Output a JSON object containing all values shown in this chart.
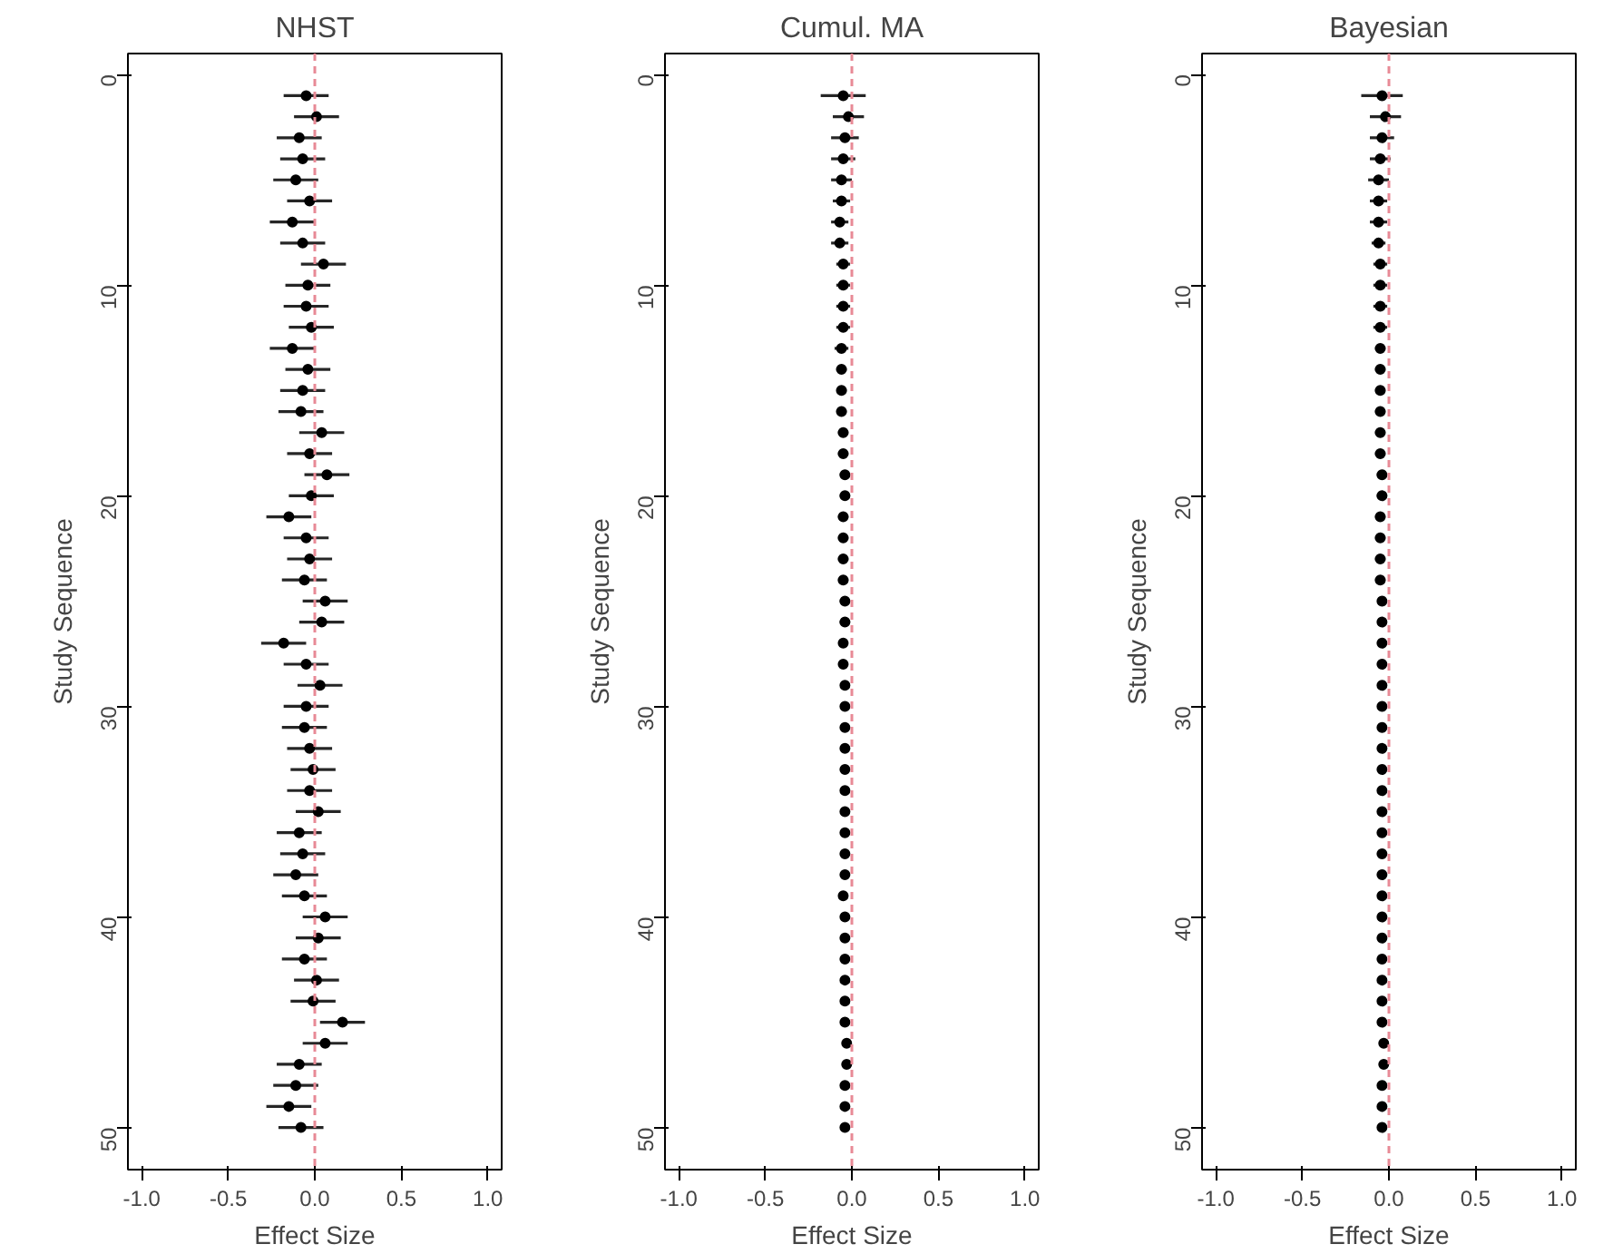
{
  "chart_data": [
    {
      "type": "scatter",
      "title": "NHST",
      "xlabel": "Effect Size",
      "ylabel": "Study Sequence",
      "marker": "circle",
      "grid": false,
      "xlim": [
        -1.08,
        1.08
      ],
      "ylim": [
        52,
        -1
      ],
      "xticks": [
        {
          "value": -1,
          "label": "-1.0"
        },
        {
          "value": -0.5,
          "label": "-0.5"
        },
        {
          "value": 0,
          "label": "0.0"
        },
        {
          "value": 0.5,
          "label": "0.5"
        },
        {
          "value": 1,
          "label": "1.0"
        }
      ],
      "yticks": [
        0,
        10,
        20,
        30,
        40,
        50
      ],
      "ref_lines": [
        {
          "axis": "x",
          "value": 0,
          "label": null,
          "color": "#e88a96",
          "line_style": "dashed"
        }
      ],
      "series": [
        {
          "color": "#000000",
          "x": [
            -0.05,
            0.01,
            -0.09,
            -0.07,
            -0.11,
            -0.03,
            -0.13,
            -0.07,
            0.05,
            -0.04,
            -0.05,
            -0.02,
            -0.13,
            -0.04,
            -0.07,
            -0.08,
            0.04,
            -0.03,
            0.07,
            -0.02,
            -0.15,
            -0.05,
            -0.03,
            -0.06,
            0.06,
            0.04,
            -0.18,
            -0.05,
            0.03,
            -0.05,
            -0.06,
            -0.03,
            -0.01,
            -0.03,
            0.02,
            -0.09,
            -0.07,
            -0.11,
            -0.06,
            0.06,
            0.02,
            -0.06,
            0.01,
            -0.01,
            0.16,
            0.06,
            -0.09,
            -0.11,
            -0.15,
            -0.08
          ],
          "values": [
            1,
            2,
            3,
            4,
            5,
            6,
            7,
            8,
            9,
            10,
            11,
            12,
            13,
            14,
            15,
            16,
            17,
            18,
            19,
            20,
            21,
            22,
            23,
            24,
            25,
            26,
            27,
            28,
            29,
            30,
            31,
            32,
            33,
            34,
            35,
            36,
            37,
            38,
            39,
            40,
            41,
            42,
            43,
            44,
            45,
            46,
            47,
            48,
            49,
            50
          ],
          "xerrors": [
            0.13,
            0.13,
            0.13,
            0.13,
            0.13,
            0.13,
            0.13,
            0.13,
            0.13,
            0.13,
            0.13,
            0.13,
            0.13,
            0.13,
            0.13,
            0.13,
            0.13,
            0.13,
            0.13,
            0.13,
            0.13,
            0.13,
            0.13,
            0.13,
            0.13,
            0.13,
            0.13,
            0.13,
            0.13,
            0.13,
            0.13,
            0.13,
            0.13,
            0.13,
            0.13,
            0.13,
            0.13,
            0.13,
            0.13,
            0.13,
            0.13,
            0.13,
            0.13,
            0.13,
            0.13,
            0.13,
            0.13,
            0.13,
            0.13,
            0.13
          ]
        }
      ]
    },
    {
      "type": "scatter",
      "title": "Cumul. MA",
      "xlabel": "Effect Size",
      "ylabel": "Study Sequence",
      "marker": "circle",
      "grid": false,
      "xlim": [
        -1.08,
        1.08
      ],
      "ylim": [
        52,
        -1
      ],
      "xticks": [
        {
          "value": -1,
          "label": "-1.0"
        },
        {
          "value": -0.5,
          "label": "-0.5"
        },
        {
          "value": 0,
          "label": "0.0"
        },
        {
          "value": 0.5,
          "label": "0.5"
        },
        {
          "value": 1,
          "label": "1.0"
        }
      ],
      "yticks": [
        0,
        10,
        20,
        30,
        40,
        50
      ],
      "ref_lines": [
        {
          "axis": "x",
          "value": 0,
          "label": null,
          "color": "#e88a96",
          "line_style": "dashed"
        }
      ],
      "series": [
        {
          "color": "#000000",
          "x": [
            -0.05,
            -0.02,
            -0.04,
            -0.05,
            -0.06,
            -0.06,
            -0.07,
            -0.07,
            -0.05,
            -0.05,
            -0.05,
            -0.05,
            -0.06,
            -0.06,
            -0.06,
            -0.06,
            -0.05,
            -0.05,
            -0.04,
            -0.04,
            -0.05,
            -0.05,
            -0.05,
            -0.05,
            -0.04,
            -0.04,
            -0.05,
            -0.05,
            -0.04,
            -0.04,
            -0.04,
            -0.04,
            -0.04,
            -0.04,
            -0.04,
            -0.04,
            -0.04,
            -0.04,
            -0.05,
            -0.04,
            -0.04,
            -0.04,
            -0.04,
            -0.04,
            -0.04,
            -0.03,
            -0.03,
            -0.04,
            -0.04,
            -0.04
          ],
          "values": [
            1,
            2,
            3,
            4,
            5,
            6,
            7,
            8,
            9,
            10,
            11,
            12,
            13,
            14,
            15,
            16,
            17,
            18,
            19,
            20,
            21,
            22,
            23,
            24,
            25,
            26,
            27,
            28,
            29,
            30,
            31,
            32,
            33,
            34,
            35,
            36,
            37,
            38,
            39,
            40,
            41,
            42,
            43,
            44,
            45,
            46,
            47,
            48,
            49,
            50
          ],
          "xerrors": [
            0.13,
            0.09,
            0.08,
            0.07,
            0.06,
            0.05,
            0.05,
            0.05,
            0.04,
            0.04,
            0.04,
            0.04,
            0.04,
            0.03,
            0.03,
            0.03,
            0.03,
            0.03,
            0.03,
            0.03,
            0.03,
            0.03,
            0.03,
            0.03,
            0.03,
            0.03,
            0.02,
            0.02,
            0.02,
            0.02,
            0.02,
            0.02,
            0.02,
            0.02,
            0.02,
            0.02,
            0.02,
            0.02,
            0.02,
            0.02,
            0.02,
            0.02,
            0.02,
            0.02,
            0.02,
            0.02,
            0.02,
            0.02,
            0.02,
            0.02
          ]
        }
      ]
    },
    {
      "type": "scatter",
      "title": "Bayesian",
      "xlabel": "Effect Size",
      "ylabel": "Study Sequence",
      "marker": "circle",
      "grid": false,
      "xlim": [
        -1.08,
        1.08
      ],
      "ylim": [
        52,
        -1
      ],
      "xticks": [
        {
          "value": -1,
          "label": "-1.0"
        },
        {
          "value": -0.5,
          "label": "-0.5"
        },
        {
          "value": 0,
          "label": "0.0"
        },
        {
          "value": 0.5,
          "label": "0.5"
        },
        {
          "value": 1,
          "label": "1.0"
        }
      ],
      "yticks": [
        0,
        10,
        20,
        30,
        40,
        50
      ],
      "ref_lines": [
        {
          "axis": "x",
          "value": 0,
          "label": null,
          "color": "#e88a96",
          "line_style": "dashed"
        }
      ],
      "series": [
        {
          "color": "#000000",
          "x": [
            -0.04,
            -0.02,
            -0.04,
            -0.05,
            -0.06,
            -0.06,
            -0.06,
            -0.06,
            -0.05,
            -0.05,
            -0.05,
            -0.05,
            -0.05,
            -0.05,
            -0.05,
            -0.05,
            -0.05,
            -0.05,
            -0.04,
            -0.04,
            -0.05,
            -0.05,
            -0.05,
            -0.05,
            -0.04,
            -0.04,
            -0.04,
            -0.04,
            -0.04,
            -0.04,
            -0.04,
            -0.04,
            -0.04,
            -0.04,
            -0.04,
            -0.04,
            -0.04,
            -0.04,
            -0.04,
            -0.04,
            -0.04,
            -0.04,
            -0.04,
            -0.04,
            -0.04,
            -0.03,
            -0.03,
            -0.04,
            -0.04,
            -0.04
          ],
          "values": [
            1,
            2,
            3,
            4,
            5,
            6,
            7,
            8,
            9,
            10,
            11,
            12,
            13,
            14,
            15,
            16,
            17,
            18,
            19,
            20,
            21,
            22,
            23,
            24,
            25,
            26,
            27,
            28,
            29,
            30,
            31,
            32,
            33,
            34,
            35,
            36,
            37,
            38,
            39,
            40,
            41,
            42,
            43,
            44,
            45,
            46,
            47,
            48,
            49,
            50
          ],
          "xerrors": [
            0.12,
            0.09,
            0.07,
            0.06,
            0.06,
            0.05,
            0.05,
            0.04,
            0.04,
            0.04,
            0.04,
            0.04,
            0.03,
            0.03,
            0.03,
            0.03,
            0.03,
            0.03,
            0.03,
            0.03,
            0.03,
            0.03,
            0.03,
            0.03,
            0.02,
            0.02,
            0.02,
            0.02,
            0.02,
            0.02,
            0.02,
            0.02,
            0.02,
            0.02,
            0.02,
            0.02,
            0.02,
            0.02,
            0.02,
            0.02,
            0.02,
            0.02,
            0.02,
            0.02,
            0.02,
            0.02,
            0.02,
            0.02,
            0.02,
            0.02
          ]
        }
      ]
    }
  ]
}
